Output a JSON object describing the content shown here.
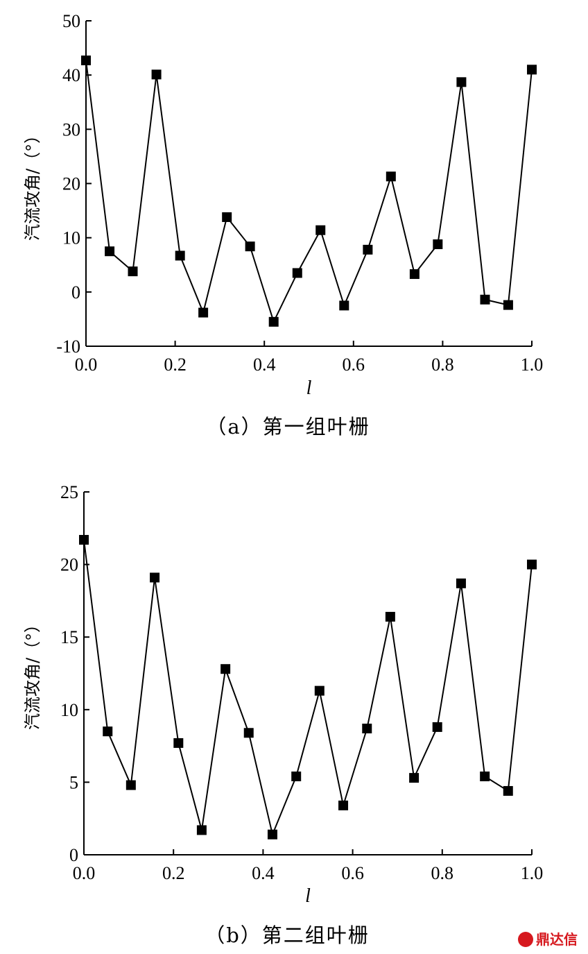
{
  "chart_data": [
    {
      "type": "line",
      "title": "",
      "caption": "（a）第一组叶栅",
      "xlabel": "l",
      "ylabel": "汽流攻角/（°）",
      "xlim": [
        0.0,
        1.0
      ],
      "ylim": [
        -10,
        50
      ],
      "xticks": [
        "0.0",
        "0.2",
        "0.4",
        "0.6",
        "0.8",
        "1.0"
      ],
      "yticks": [
        "-10",
        "0",
        "10",
        "20",
        "30",
        "40",
        "50"
      ],
      "x": [
        0.0,
        0.053,
        0.105,
        0.158,
        0.211,
        0.263,
        0.316,
        0.368,
        0.421,
        0.474,
        0.526,
        0.579,
        0.632,
        0.684,
        0.737,
        0.789,
        0.842,
        0.895,
        0.947,
        1.0
      ],
      "values": [
        42.7,
        7.5,
        3.8,
        40.1,
        6.7,
        -3.8,
        13.8,
        8.4,
        -5.5,
        3.5,
        11.4,
        -2.5,
        7.8,
        21.3,
        3.3,
        8.8,
        38.7,
        -1.4,
        -2.4,
        41.0
      ],
      "marker": "square"
    },
    {
      "type": "line",
      "title": "",
      "caption": "（b）第二组叶栅",
      "xlabel": "l",
      "ylabel": "汽流攻角/（°）",
      "xlim": [
        0.0,
        1.0
      ],
      "ylim": [
        0,
        25
      ],
      "xticks": [
        "0.0",
        "0.2",
        "0.4",
        "0.6",
        "0.8",
        "1.0"
      ],
      "yticks": [
        "0",
        "5",
        "10",
        "15",
        "20",
        "25"
      ],
      "x": [
        0.0,
        0.053,
        0.105,
        0.158,
        0.211,
        0.263,
        0.316,
        0.368,
        0.421,
        0.474,
        0.526,
        0.579,
        0.632,
        0.684,
        0.737,
        0.789,
        0.842,
        0.895,
        0.947,
        1.0
      ],
      "values": [
        21.7,
        8.5,
        4.8,
        19.1,
        7.7,
        1.7,
        12.8,
        8.4,
        1.4,
        5.4,
        11.3,
        3.4,
        8.7,
        16.4,
        5.3,
        8.8,
        18.7,
        5.4,
        4.4,
        20.0
      ],
      "marker": "square"
    }
  ],
  "watermark": {
    "text": "鼎达信",
    "color": "#d6181e"
  }
}
